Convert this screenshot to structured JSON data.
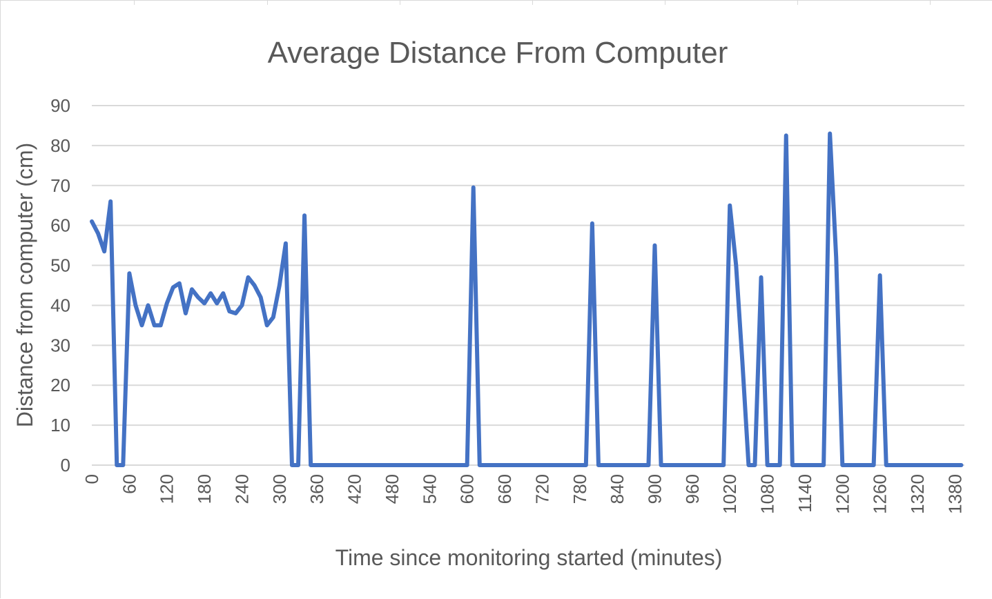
{
  "colors": {
    "series_line": "#4472c4",
    "gridline": "#d9d9d9",
    "text": "#595959",
    "background": "#ffffff"
  },
  "chart_data": {
    "type": "line",
    "title": "Average Distance From Computer",
    "xlabel": "Time since monitoring started (minutes)",
    "ylabel": "Distance from computer  (cm)",
    "xlim": [
      0,
      1395
    ],
    "ylim": [
      0,
      90
    ],
    "grid": true,
    "legend": "none",
    "x_ticks": [
      "0",
      "60",
      "120",
      "180",
      "240",
      "300",
      "360",
      "420",
      "480",
      "540",
      "600",
      "660",
      "720",
      "780",
      "840",
      "900",
      "960",
      "1020",
      "1080",
      "1140",
      "1200",
      "1260",
      "1320",
      "1380"
    ],
    "y_ticks": [
      "0",
      "10",
      "20",
      "30",
      "40",
      "50",
      "60",
      "70",
      "80",
      "90"
    ],
    "series": [
      {
        "x": [
          0,
          10,
          20,
          30,
          40,
          50,
          60,
          70,
          80,
          90,
          100,
          110,
          120,
          130,
          140,
          150,
          160,
          170,
          180,
          190,
          200,
          210,
          220,
          230,
          240,
          250,
          260,
          270,
          280,
          290,
          300,
          310,
          320,
          330,
          340,
          350,
          360,
          370,
          380,
          390,
          400,
          410,
          420,
          430,
          440,
          450,
          460,
          470,
          480,
          490,
          500,
          510,
          520,
          530,
          540,
          550,
          560,
          570,
          580,
          590,
          600,
          610,
          620,
          630,
          640,
          650,
          660,
          670,
          680,
          690,
          700,
          710,
          720,
          730,
          740,
          750,
          760,
          770,
          780,
          790,
          800,
          810,
          820,
          830,
          840,
          850,
          860,
          870,
          880,
          890,
          900,
          910,
          920,
          930,
          940,
          950,
          960,
          970,
          980,
          990,
          1000,
          1010,
          1020,
          1030,
          1040,
          1050,
          1060,
          1070,
          1080,
          1090,
          1100,
          1110,
          1120,
          1130,
          1140,
          1150,
          1160,
          1170,
          1180,
          1190,
          1200,
          1210,
          1220,
          1230,
          1240,
          1250,
          1260,
          1270,
          1280,
          1290,
          1300,
          1310,
          1320,
          1330,
          1340,
          1350,
          1360,
          1370,
          1380,
          1390
        ],
        "y": [
          61,
          58,
          53.5,
          66,
          0,
          0,
          48,
          40,
          35,
          40,
          35,
          35,
          40.5,
          44.5,
          45.5,
          38,
          44,
          42,
          40.5,
          43,
          40.5,
          43,
          38.5,
          38,
          40,
          47,
          45,
          42,
          35,
          37,
          45,
          55.5,
          0,
          0,
          62.5,
          0,
          0,
          0,
          0,
          0,
          0,
          0,
          0,
          0,
          0,
          0,
          0,
          0,
          0,
          0,
          0,
          0,
          0,
          0,
          0,
          0,
          0,
          0,
          0,
          0,
          0,
          69.5,
          0,
          0,
          0,
          0,
          0,
          0,
          0,
          0,
          0,
          0,
          0,
          0,
          0,
          0,
          0,
          0,
          0,
          0,
          60.5,
          0,
          0,
          0,
          0,
          0,
          0,
          0,
          0,
          0,
          55,
          0,
          0,
          0,
          0,
          0,
          0,
          0,
          0,
          0,
          0,
          0,
          65,
          50,
          26,
          0,
          0,
          47,
          0,
          0,
          0,
          82.5,
          0,
          0,
          0,
          0,
          0,
          0,
          83,
          52,
          0,
          0,
          0,
          0,
          0,
          0,
          47.5,
          0,
          0,
          0,
          0,
          0,
          0,
          0,
          0,
          0,
          0,
          0,
          0,
          0
        ]
      }
    ]
  }
}
